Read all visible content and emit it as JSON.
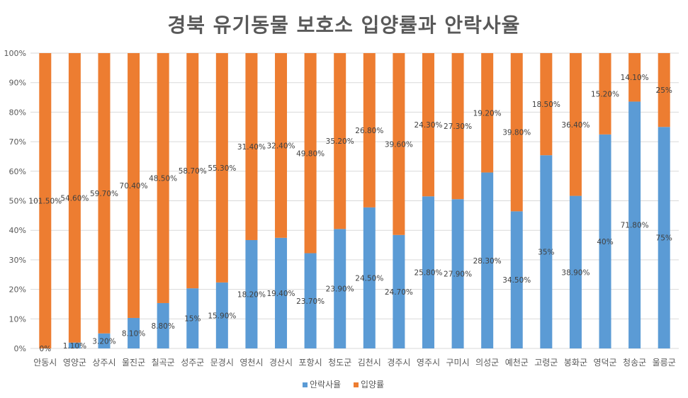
{
  "chart_data": {
    "type": "bar",
    "stacked": true,
    "normalized_100_percent": true,
    "title": "경북 유기동물 보호소 입양률과 안락사율",
    "categories": [
      "안동시",
      "영양군",
      "상주시",
      "울진군",
      "칠곡군",
      "성주군",
      "문경시",
      "영천시",
      "경산시",
      "포항시",
      "청도군",
      "김천시",
      "경주시",
      "영주시",
      "구미시",
      "의성군",
      "예천군",
      "고령군",
      "봉화군",
      "영덕군",
      "청송군",
      "울릉군"
    ],
    "series": [
      {
        "name": "안락사율",
        "color": "#5B9BD5",
        "values": [
          0,
          1.1,
          3.2,
          8.1,
          8.8,
          15,
          15.9,
          18.2,
          19.4,
          23.7,
          23.9,
          24.5,
          24.7,
          25.8,
          27.9,
          28.3,
          34.5,
          35,
          38.9,
          40,
          71.8,
          75
        ],
        "labels": [
          "0%",
          "1.10%",
          "3.20%",
          "8.10%",
          "8.80%",
          "15%",
          "15.90%",
          "18.20%",
          "19.40%",
          "23.70%",
          "23.90%",
          "24.50%",
          "24.70%",
          "25.80%",
          "27.90%",
          "28.30%",
          "34.50%",
          "35%",
          "38.90%",
          "40%",
          "71.80%",
          "75%"
        ]
      },
      {
        "name": "입양률",
        "color": "#ED7D31",
        "values": [
          101.5,
          54.6,
          59.7,
          70.4,
          48.5,
          58.7,
          55.3,
          31.4,
          32.4,
          49.8,
          35.2,
          26.8,
          39.6,
          24.3,
          27.3,
          19.2,
          39.8,
          18.5,
          36.4,
          15.2,
          14.1,
          25
        ],
        "labels": [
          "101.50%",
          "54.60%",
          "59.70%",
          "70.40%",
          "48.50%",
          "58.70%",
          "55.30%",
          "31.40%",
          "32.40%",
          "49.80%",
          "35.20%",
          "26.80%",
          "39.60%",
          "24.30%",
          "27.30%",
          "19.20%",
          "39.80%",
          "18.50%",
          "36.40%",
          "15.20%",
          "14.10%",
          "25%"
        ]
      }
    ],
    "yticks": [
      "0%",
      "10%",
      "20%",
      "30%",
      "40%",
      "50%",
      "60%",
      "70%",
      "80%",
      "90%",
      "100%"
    ],
    "ylim": [
      0,
      100
    ],
    "grid": true,
    "legend_position": "bottom"
  }
}
